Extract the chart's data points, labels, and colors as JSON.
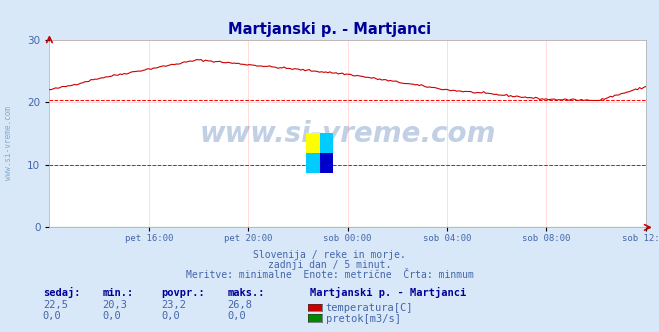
{
  "title": "Martjanski p. - Martjanci",
  "title_color": "#000099",
  "bg_color": "#d8e8f8",
  "plot_bg_color": "#ffffff",
  "grid_color": "#ffcccc",
  "xlabel_color": "#4466aa",
  "text_color": "#4466aa",
  "x_labels": [
    "pet 16:00",
    "pet 20:00",
    "sob 00:00",
    "sob 04:00",
    "sob 08:00",
    "sob 12:00"
  ],
  "x_tick_positions": [
    0.1667,
    0.3333,
    0.5,
    0.6667,
    0.8333,
    1.0
  ],
  "ylim": [
    0,
    30
  ],
  "yticks": [
    0,
    10,
    20,
    30
  ],
  "line_color": "#cc0000",
  "line_color2": "#008800",
  "avg_line_color": "#ff0000",
  "avg_line_value": 20.3,
  "avg_line2_value": 10.0,
  "subtitle1": "Slovenija / reke in morje.",
  "subtitle2": "zadnji dan / 5 minut.",
  "subtitle3": "Meritve: minimalne  Enote: metrične  Črta: minmum",
  "legend_title": "Martjanski p. - Martjanci",
  "legend_items": [
    {
      "label": "temperatura[C]",
      "color": "#cc0000"
    },
    {
      "label": "pretok[m3/s]",
      "color": "#008800"
    }
  ],
  "stats_headers": [
    "sedaj:",
    "min.:",
    "povpr.:",
    "maks.:"
  ],
  "stats_row1": [
    "22,5",
    "20,3",
    "23,2",
    "26,8"
  ],
  "stats_row2": [
    "0,0",
    "0,0",
    "0,0",
    "0,0"
  ],
  "watermark": "www.si-vreme.com"
}
